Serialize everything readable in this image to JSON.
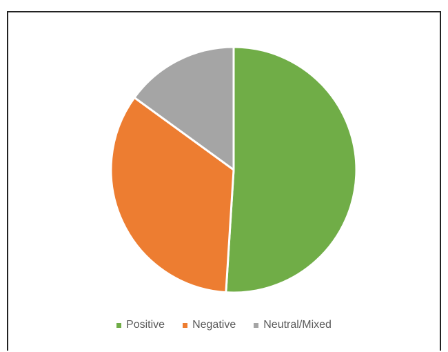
{
  "chart_data": {
    "type": "pie",
    "title": "",
    "categories": [
      "Positive",
      "Negative",
      "Neutral/Mixed"
    ],
    "values": [
      51,
      34,
      15
    ],
    "colors": [
      "#70AD47",
      "#ED7D31",
      "#A5A5A5"
    ],
    "legend_position": "bottom"
  }
}
